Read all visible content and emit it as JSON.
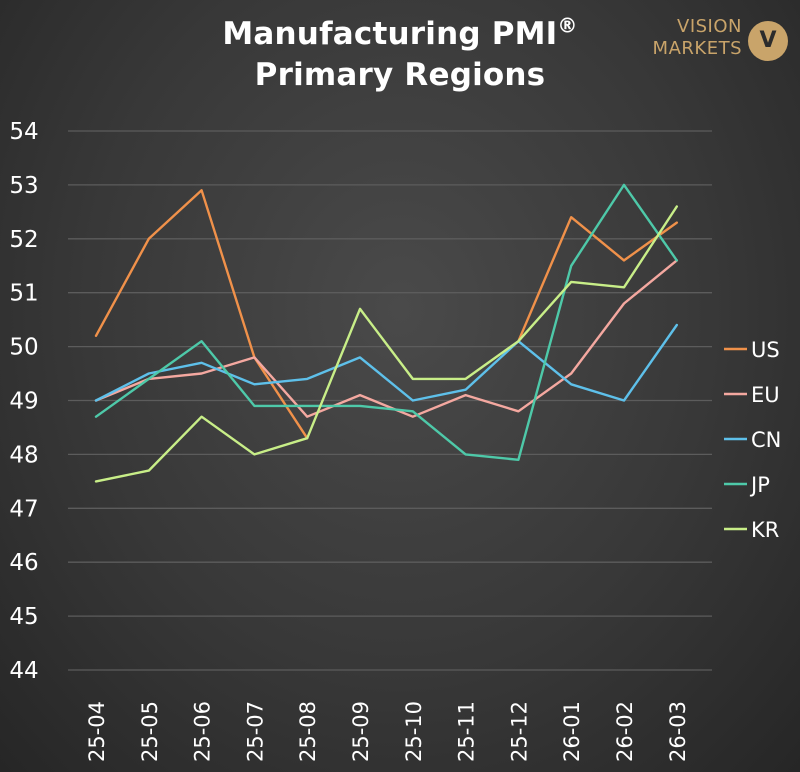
{
  "header": {
    "title_line1": "Manufacturing PMI",
    "title_mark": "®",
    "title_line2": "Primary Regions"
  },
  "logo": {
    "line1": "VISION",
    "line2": "MARKETS",
    "badge": "V"
  },
  "colors": {
    "US": "#f0914a",
    "EU": "#f4a8a0",
    "CN": "#5ec0ea",
    "JP": "#4ec9a9",
    "KR": "#c8ee88",
    "grid": "#5c5c5c"
  },
  "chart_data": {
    "type": "line",
    "title": "Manufacturing PMI® Primary Regions",
    "xlabel": "",
    "ylabel": "",
    "ylim": [
      44,
      54
    ],
    "yticks": [
      "54",
      "53",
      "52",
      "51",
      "50",
      "49",
      "48",
      "47",
      "46",
      "45",
      "44"
    ],
    "grid": true,
    "legend_position": "right",
    "categories": [
      "25-04",
      "25-05",
      "25-06",
      "25-07",
      "25-08",
      "25-09",
      "25-10",
      "25-11",
      "25-12",
      "26-01",
      "26-02",
      "26-03"
    ],
    "series": [
      {
        "name": "US",
        "values": [
          50.2,
          52.0,
          52.9,
          49.8,
          48.3,
          null,
          null,
          null,
          50.1,
          52.4,
          51.6,
          52.3
        ]
      },
      {
        "name": "EU",
        "values": [
          49.0,
          49.4,
          49.5,
          49.8,
          48.7,
          49.1,
          48.7,
          49.1,
          48.8,
          49.5,
          50.8,
          51.6
        ]
      },
      {
        "name": "CN",
        "values": [
          49.0,
          49.5,
          49.7,
          49.3,
          49.4,
          49.8,
          49.0,
          49.2,
          50.1,
          49.3,
          49.0,
          50.4
        ]
      },
      {
        "name": "JP",
        "values": [
          48.7,
          49.4,
          50.1,
          48.9,
          48.9,
          48.9,
          48.8,
          48.0,
          47.9,
          51.5,
          53.0,
          51.6
        ]
      },
      {
        "name": "KR",
        "values": [
          47.5,
          47.7,
          48.7,
          48.0,
          48.3,
          50.7,
          49.4,
          49.4,
          50.1,
          51.2,
          51.1,
          52.6
        ]
      }
    ]
  }
}
